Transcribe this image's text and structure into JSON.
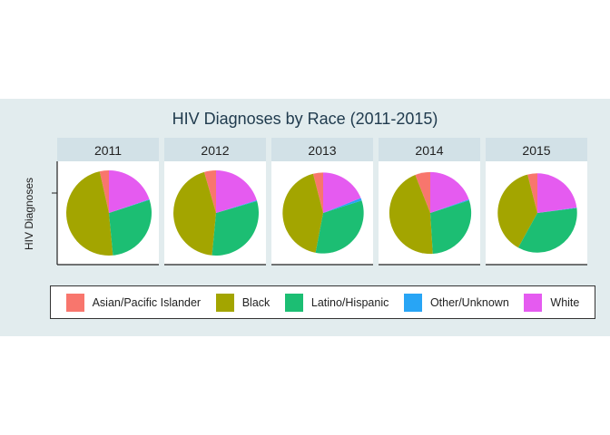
{
  "chart_data": {
    "type": "pie",
    "title": "HIV Diagnoses by Race (2011-2015)",
    "ylabel": "HIV Diagnoses",
    "xlabel": "",
    "legend_position": "bottom",
    "categories": [
      "Asian/Pacific Islander",
      "Black",
      "Latino/Hispanic",
      "Other/Unknown",
      "White"
    ],
    "colors": [
      "#F8766D",
      "#A3A500",
      "#1CBE73",
      "#28A5F5",
      "#E55BF0"
    ],
    "facets": [
      {
        "year": "2011",
        "values": [
          3.5,
          48,
          28.5,
          0.2,
          19.8
        ],
        "scale": 1.0
      },
      {
        "year": "2012",
        "values": [
          4.5,
          44,
          31,
          0.3,
          20.2
        ],
        "scale": 1.0
      },
      {
        "year": "2013",
        "values": [
          4.0,
          43,
          33,
          1.0,
          19.0
        ],
        "scale": 0.95
      },
      {
        "year": "2014",
        "values": [
          6.0,
          45,
          29,
          0.4,
          19.6
        ],
        "scale": 0.96
      },
      {
        "year": "2015",
        "values": [
          4.0,
          38,
          35,
          0.2,
          22.8
        ],
        "scale": 0.93
      }
    ]
  }
}
